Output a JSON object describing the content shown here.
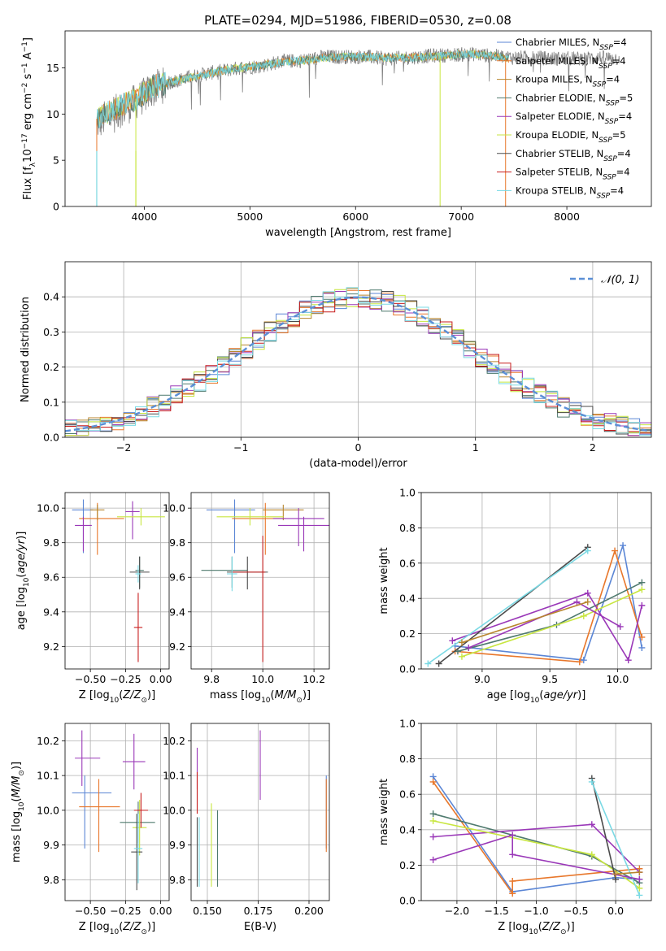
{
  "figure": {
    "title": "PLATE=0294, MJD=51986, FIBERID=0530, z=0.08"
  },
  "colors": {
    "Chabrier MILES": "#5b86d5",
    "Salpeter MILES": "#e8772b",
    "Kroupa MILES": "#b8862e",
    "Chabrier ELODIE": "#4f7a6e",
    "Salpeter ELODIE": "#9a38b8",
    "Kroupa ELODIE": "#c8e640",
    "Chabrier STELIB": "#4b4b4b",
    "Salpeter STELIB": "#c81e1e",
    "Kroupa STELIB": "#7ad9e4",
    "data": "#808080"
  },
  "chart_data": [
    {
      "id": "spectrum",
      "type": "line",
      "title": "PLATE=0294, MJD=51986, FIBERID=0530, z=0.08",
      "xlabel": "wavelength [Angstrom, rest frame]",
      "ylabel": "Flux [f_λ10^-17 erg cm^-2 s^-1 A^-1]",
      "xlim": [
        3250,
        8800
      ],
      "ylim": [
        0,
        19
      ],
      "xticks": [
        4000,
        5000,
        6000,
        7000,
        8000
      ],
      "yticks": [
        0,
        5,
        10,
        15
      ],
      "legend_position": "right",
      "legend": [
        {
          "name": "Chabrier MILES",
          "nssp": "4"
        },
        {
          "name": "Salpeter MILES",
          "nssp": "4"
        },
        {
          "name": "Kroupa MILES",
          "nssp": "4"
        },
        {
          "name": "Chabrier ELODIE",
          "nssp": "5"
        },
        {
          "name": "Salpeter ELODIE",
          "nssp": "4"
        },
        {
          "name": "Kroupa ELODIE",
          "nssp": "5"
        },
        {
          "name": "Chabrier STELIB",
          "nssp": "4"
        },
        {
          "name": "Salpeter STELIB",
          "nssp": "4"
        },
        {
          "name": "Kroupa STELIB",
          "nssp": "4"
        }
      ],
      "continuum": {
        "x": [
          3550,
          3700,
          3900,
          4100,
          4300,
          4500,
          4700,
          4900,
          5100,
          5300,
          5500,
          5700,
          5900,
          6100,
          6300,
          6500,
          6700,
          6900,
          7100,
          7300,
          7450
        ],
        "y": [
          9.5,
          10.5,
          11.5,
          13.0,
          13.6,
          14.1,
          14.6,
          15.0,
          15.2,
          15.6,
          15.8,
          16.1,
          16.2,
          16.2,
          16.1,
          16.1,
          16.2,
          16.4,
          16.5,
          16.3,
          16.0
        ]
      },
      "data_series": {
        "x": [
          3550,
          3700,
          3900,
          4100,
          4300,
          4500,
          4700,
          4900,
          5100,
          5300,
          5500,
          5700,
          5900,
          6100,
          6300,
          6500,
          6700,
          6900,
          7100,
          7300,
          7500,
          7700,
          7900,
          8100,
          8300,
          8500
        ],
        "y": [
          9.0,
          10.0,
          11.2,
          12.8,
          13.6,
          14.2,
          14.6,
          15.0,
          15.2,
          15.7,
          15.8,
          16.2,
          16.2,
          16.2,
          16.0,
          16.1,
          16.3,
          16.4,
          16.5,
          16.3,
          16.1,
          16.1,
          16.0,
          16.0,
          16.1,
          16.0
        ]
      },
      "drops": [
        {
          "x": 3550,
          "min": 0
        },
        {
          "x": 3920,
          "min": 0
        },
        {
          "x": 6800,
          "min": 0
        },
        {
          "x": 7420,
          "min": 0
        }
      ]
    },
    {
      "id": "residuals",
      "type": "histogram",
      "xlabel": "(data-model)/error",
      "ylabel": "Normed distribution",
      "xlim": [
        -2.5,
        2.5
      ],
      "ylim": [
        0,
        0.5
      ],
      "xticks": [
        -2,
        -1,
        0,
        1,
        2
      ],
      "yticks": [
        0.0,
        0.1,
        0.2,
        0.3,
        0.4
      ],
      "legend_position": "top-right",
      "gaussian_label": "𝒩(0, 1)",
      "bin_width": 0.1
    },
    {
      "id": "age-vs-z",
      "type": "errorbar",
      "xlabel": "Z [log10(Z/Z⊙)]",
      "ylabel": "age  [log10(age/yr)]",
      "xlim": [
        -0.68,
        0.06
      ],
      "ylim": [
        9.07,
        10.09
      ],
      "xticks": [
        -0.5,
        -0.25,
        0.0
      ],
      "yticks": [
        9.2,
        9.4,
        9.6,
        9.8,
        10.0
      ],
      "points": [
        {
          "series": "Chabrier MILES",
          "x": -0.55,
          "xerr": [
            0.08,
            0.07
          ],
          "y": 9.99,
          "yerr": [
            0.25,
            0.06
          ]
        },
        {
          "series": "Salpeter MILES",
          "x": -0.45,
          "xerr": [
            0.13,
            0.19
          ],
          "y": 9.94,
          "yerr": [
            0.21,
            0.09
          ]
        },
        {
          "series": "Kroupa MILES",
          "x": -0.45,
          "xerr": [
            0.05,
            0.05
          ],
          "y": 9.99,
          "yerr": [
            0.06,
            0.03
          ]
        },
        {
          "series": "Chabrier ELODIE",
          "x": -0.15,
          "xerr": [
            0.03,
            0.03
          ],
          "y": 9.64,
          "yerr": [
            0.1,
            0.08
          ]
        },
        {
          "series": "Salpeter ELODIE",
          "x": -0.2,
          "xerr": [
            0.05,
            0.05
          ],
          "y": 9.98,
          "yerr": [
            0.16,
            0.06
          ]
        },
        {
          "series": "Kroupa ELODIE",
          "x": -0.14,
          "xerr": [
            0.17,
            0.17
          ],
          "y": 9.95,
          "yerr": [
            0.05,
            0.05
          ]
        },
        {
          "series": "Chabrier STELIB",
          "x": -0.15,
          "xerr": [
            0.07,
            0.07
          ],
          "y": 9.63,
          "yerr": [
            0.1,
            0.09
          ]
        },
        {
          "series": "Salpeter STELIB",
          "x": -0.16,
          "xerr": [
            0.03,
            0.03
          ],
          "y": 9.31,
          "yerr": [
            0.2,
            0.2
          ]
        },
        {
          "series": "Kroupa STELIB",
          "x": -0.16,
          "xerr": [
            0.02,
            0.02
          ],
          "y": 9.62,
          "yerr": [
            0.05,
            0.05
          ]
        },
        {
          "series": "Salpeter ELODIE",
          "x": -0.55,
          "xerr": [
            0.06,
            0.06
          ],
          "y": 9.9,
          "yerr": [
            0.15,
            0.05
          ]
        }
      ]
    },
    {
      "id": "age-vs-mass",
      "type": "errorbar",
      "xlabel": "mass [log10(M/M⊙)]",
      "ylabel": "",
      "xlim": [
        9.72,
        10.26
      ],
      "ylim": [
        9.07,
        10.09
      ],
      "xticks": [
        9.8,
        10.0,
        10.2
      ],
      "yticks": [
        9.2,
        9.4,
        9.6,
        9.8,
        10.0
      ],
      "points": [
        {
          "series": "Chabrier MILES",
          "x": 9.89,
          "xerr": [
            0.11,
            0.08
          ],
          "y": 9.99,
          "yerr": [
            0.25,
            0.06
          ]
        },
        {
          "series": "Salpeter MILES",
          "x": 10.01,
          "xerr": [
            0.13,
            0.08
          ],
          "y": 9.94,
          "yerr": [
            0.21,
            0.09
          ]
        },
        {
          "series": "Kroupa MILES",
          "x": 10.08,
          "xerr": [
            0.08,
            0.08
          ],
          "y": 9.99,
          "yerr": [
            0.06,
            0.03
          ]
        },
        {
          "series": "Chabrier ELODIE",
          "x": 9.88,
          "xerr": [
            0.12,
            0.06
          ],
          "y": 9.64,
          "yerr": [
            0.1,
            0.08
          ]
        },
        {
          "series": "Salpeter ELODIE",
          "x": 10.14,
          "xerr": [
            0.1,
            0.1
          ],
          "y": 9.94,
          "yerr": [
            0.16,
            0.06
          ]
        },
        {
          "series": "Kroupa ELODIE",
          "x": 9.95,
          "xerr": [
            0.13,
            0.13
          ],
          "y": 9.95,
          "yerr": [
            0.05,
            0.05
          ]
        },
        {
          "series": "Chabrier STELIB",
          "x": 9.94,
          "xerr": [
            0.08,
            0.08
          ],
          "y": 9.63,
          "yerr": [
            0.1,
            0.09
          ]
        },
        {
          "series": "Salpeter STELIB",
          "x": 10.0,
          "xerr": [
            0.12,
            0.01
          ],
          "y": 9.63,
          "yerr": [
            0.52,
            0.21
          ]
        },
        {
          "series": "Kroupa STELIB",
          "x": 9.88,
          "xerr": [
            0.02,
            0.02
          ],
          "y": 9.62,
          "yerr": [
            0.1,
            0.1
          ]
        },
        {
          "series": "Salpeter ELODIE",
          "x": 10.16,
          "xerr": [
            0.1,
            0.1
          ],
          "y": 9.9,
          "yerr": [
            0.15,
            0.05
          ]
        }
      ]
    },
    {
      "id": "weight-vs-age",
      "type": "line",
      "xlabel": "age  [log10(age/yr)]",
      "ylabel": "mass weight",
      "xlim": [
        8.55,
        10.25
      ],
      "ylim": [
        0.0,
        1.0
      ],
      "xticks": [
        9.0,
        9.5,
        10.0
      ],
      "yticks": [
        0.0,
        0.2,
        0.4,
        0.6,
        0.8,
        1.0
      ],
      "series": [
        {
          "name": "Chabrier MILES",
          "x": [
            8.8,
            9.75,
            10.04,
            10.18
          ],
          "y": [
            0.13,
            0.05,
            0.7,
            0.12
          ]
        },
        {
          "name": "Salpeter MILES",
          "x": [
            8.8,
            9.72,
            9.98,
            10.18
          ],
          "y": [
            0.1,
            0.04,
            0.67,
            0.18
          ]
        },
        {
          "name": "Chabrier ELODIE",
          "x": [
            8.82,
            9.55,
            10.18
          ],
          "y": [
            0.1,
            0.25,
            0.49
          ]
        },
        {
          "name": "Salpeter ELODIE",
          "x": [
            8.78,
            9.78,
            10.08,
            10.18
          ],
          "y": [
            0.16,
            0.43,
            0.05,
            0.36
          ]
        },
        {
          "name": "Kroupa ELODIE",
          "x": [
            8.85,
            9.75,
            10.18
          ],
          "y": [
            0.07,
            0.3,
            0.45
          ]
        },
        {
          "name": "Chabrier STELIB",
          "x": [
            8.68,
            9.78
          ],
          "y": [
            0.03,
            0.69
          ]
        },
        {
          "name": "Kroupa STELIB",
          "x": [
            8.6,
            9.78
          ],
          "y": [
            0.03,
            0.67
          ]
        },
        {
          "name": "Salpeter ELODIE",
          "x": [
            8.9,
            9.7,
            10.02
          ],
          "y": [
            0.12,
            0.38,
            0.24
          ]
        },
        {
          "name": "Kroupa MILES",
          "x": [
            8.85,
            9.78
          ],
          "y": [
            0.15,
            0.38
          ]
        }
      ]
    },
    {
      "id": "mass-vs-z",
      "type": "errorbar",
      "xlabel": "Z [log10(Z/Z⊙)]",
      "ylabel": "mass [log10(M/M⊙)]",
      "xlim": [
        -0.68,
        0.06
      ],
      "ylim": [
        9.74,
        10.25
      ],
      "xticks": [
        -0.5,
        -0.25,
        0.0
      ],
      "yticks": [
        9.8,
        9.9,
        10.0,
        10.1,
        10.2
      ],
      "points": [
        {
          "series": "Chabrier MILES",
          "x": -0.54,
          "xerr": [
            0.09,
            0.19
          ],
          "y": 10.05,
          "yerr": [
            0.16,
            0.05
          ]
        },
        {
          "series": "Salpeter MILES",
          "x": -0.44,
          "xerr": [
            0.14,
            0.15
          ],
          "y": 10.01,
          "yerr": [
            0.13,
            0.08
          ]
        },
        {
          "series": "Chabrier ELODIE",
          "x": -0.16,
          "xerr": [
            0.13,
            0.12
          ],
          "y": 9.965,
          "yerr": [
            0.06,
            0.06
          ]
        },
        {
          "series": "Salpeter ELODIE",
          "x": -0.19,
          "xerr": [
            0.08,
            0.08
          ],
          "y": 10.14,
          "yerr": [
            0.08,
            0.08
          ]
        },
        {
          "series": "Kroupa ELODIE",
          "x": -0.15,
          "xerr": [
            0.05,
            0.05
          ],
          "y": 9.95,
          "yerr": [
            0.08,
            0.08
          ]
        },
        {
          "series": "Chabrier STELIB",
          "x": -0.17,
          "xerr": [
            0.04,
            0.04
          ],
          "y": 9.88,
          "yerr": [
            0.11,
            0.11
          ]
        },
        {
          "series": "Salpeter STELIB",
          "x": -0.14,
          "xerr": [
            0.05,
            0.05
          ],
          "y": 10.0,
          "yerr": [
            0.05,
            0.05
          ]
        },
        {
          "series": "Kroupa STELIB",
          "x": -0.16,
          "xerr": [
            0.03,
            0.03
          ],
          "y": 9.89,
          "yerr": [
            0.1,
            0.1
          ]
        },
        {
          "series": "Salpeter ELODIE",
          "x": -0.56,
          "xerr": [
            0.05,
            0.13
          ],
          "y": 10.15,
          "yerr": [
            0.08,
            0.08
          ]
        }
      ]
    },
    {
      "id": "mass-vs-ebv",
      "type": "errorbar",
      "xlabel": "E(B-V)",
      "ylabel": "",
      "xlim": [
        0.142,
        0.21
      ],
      "ylim": [
        9.74,
        10.25
      ],
      "xticks": [
        0.15,
        0.175,
        0.2
      ],
      "yticks": [
        9.8,
        9.9,
        10.0,
        10.1,
        10.2
      ],
      "points": [
        {
          "series": "Chabrier MILES",
          "x": 0.2085,
          "y": 10.05,
          "yerr": [
            0.16,
            0.05
          ]
        },
        {
          "series": "Salpeter MILES",
          "x": 0.2085,
          "y": 10.01,
          "yerr": [
            0.13,
            0.08
          ]
        },
        {
          "series": "Chabrier ELODIE",
          "x": 0.155,
          "y": 9.89,
          "yerr": [
            0.11,
            0.11
          ]
        },
        {
          "series": "Salpeter ELODIE",
          "x": 0.145,
          "y": 10.12,
          "yerr": [
            0.06,
            0.06
          ]
        },
        {
          "series": "Kroupa ELODIE",
          "x": 0.152,
          "y": 9.9,
          "yerr": [
            0.12,
            0.12
          ]
        },
        {
          "series": "Chabrier STELIB",
          "x": 0.145,
          "y": 9.88,
          "yerr": [
            0.1,
            0.1
          ]
        },
        {
          "series": "Salpeter STELIB",
          "x": 0.145,
          "y": 10.05,
          "yerr": [
            0.06,
            0.06
          ]
        },
        {
          "series": "Kroupa STELIB",
          "x": 0.146,
          "y": 9.88,
          "yerr": [
            0.1,
            0.1
          ]
        },
        {
          "series": "Salpeter ELODIE",
          "x": 0.176,
          "y": 10.13,
          "yerr": [
            0.1,
            0.1
          ]
        }
      ]
    },
    {
      "id": "weight-vs-z",
      "type": "line",
      "xlabel": "Z [log10(Z/Z⊙)]",
      "ylabel": "mass weight",
      "xlim": [
        -2.45,
        0.45
      ],
      "ylim": [
        0.0,
        1.0
      ],
      "xticks": [
        -2.0,
        -1.5,
        -1.0,
        -0.5,
        0.0
      ],
      "yticks": [
        0.0,
        0.2,
        0.4,
        0.6,
        0.8,
        1.0
      ],
      "series": [
        {
          "name": "Chabrier MILES",
          "x": [
            -2.3,
            -1.3,
            0.0,
            0.3
          ],
          "y": [
            0.7,
            0.05,
            0.13,
            0.12
          ]
        },
        {
          "name": "Salpeter MILES",
          "x": [
            -2.3,
            -1.3,
            -1.3,
            0.3
          ],
          "y": [
            0.67,
            0.04,
            0.11,
            0.18
          ]
        },
        {
          "name": "Chabrier ELODIE",
          "x": [
            -2.3,
            -0.3,
            0.3
          ],
          "y": [
            0.49,
            0.25,
            0.1
          ]
        },
        {
          "name": "Salpeter ELODIE",
          "x": [
            -2.3,
            -0.3,
            0.3
          ],
          "y": [
            0.36,
            0.43,
            0.16
          ]
        },
        {
          "name": "Kroupa ELODIE",
          "x": [
            -2.3,
            -0.3,
            0.3
          ],
          "y": [
            0.45,
            0.26,
            0.07
          ]
        },
        {
          "name": "Chabrier STELIB",
          "x": [
            -0.3,
            0.0
          ],
          "y": [
            0.69,
            0.12
          ]
        },
        {
          "name": "Kroupa STELIB",
          "x": [
            -0.3,
            0.3
          ],
          "y": [
            0.67,
            0.03
          ]
        },
        {
          "name": "Salpeter ELODIE",
          "x": [
            -2.3,
            -1.3,
            -1.3,
            0.3
          ],
          "y": [
            0.23,
            0.37,
            0.26,
            0.12
          ]
        },
        {
          "name": "Kroupa MILES",
          "x": [
            0.0,
            0.3
          ],
          "y": [
            0.15,
            0.16
          ]
        }
      ]
    }
  ]
}
